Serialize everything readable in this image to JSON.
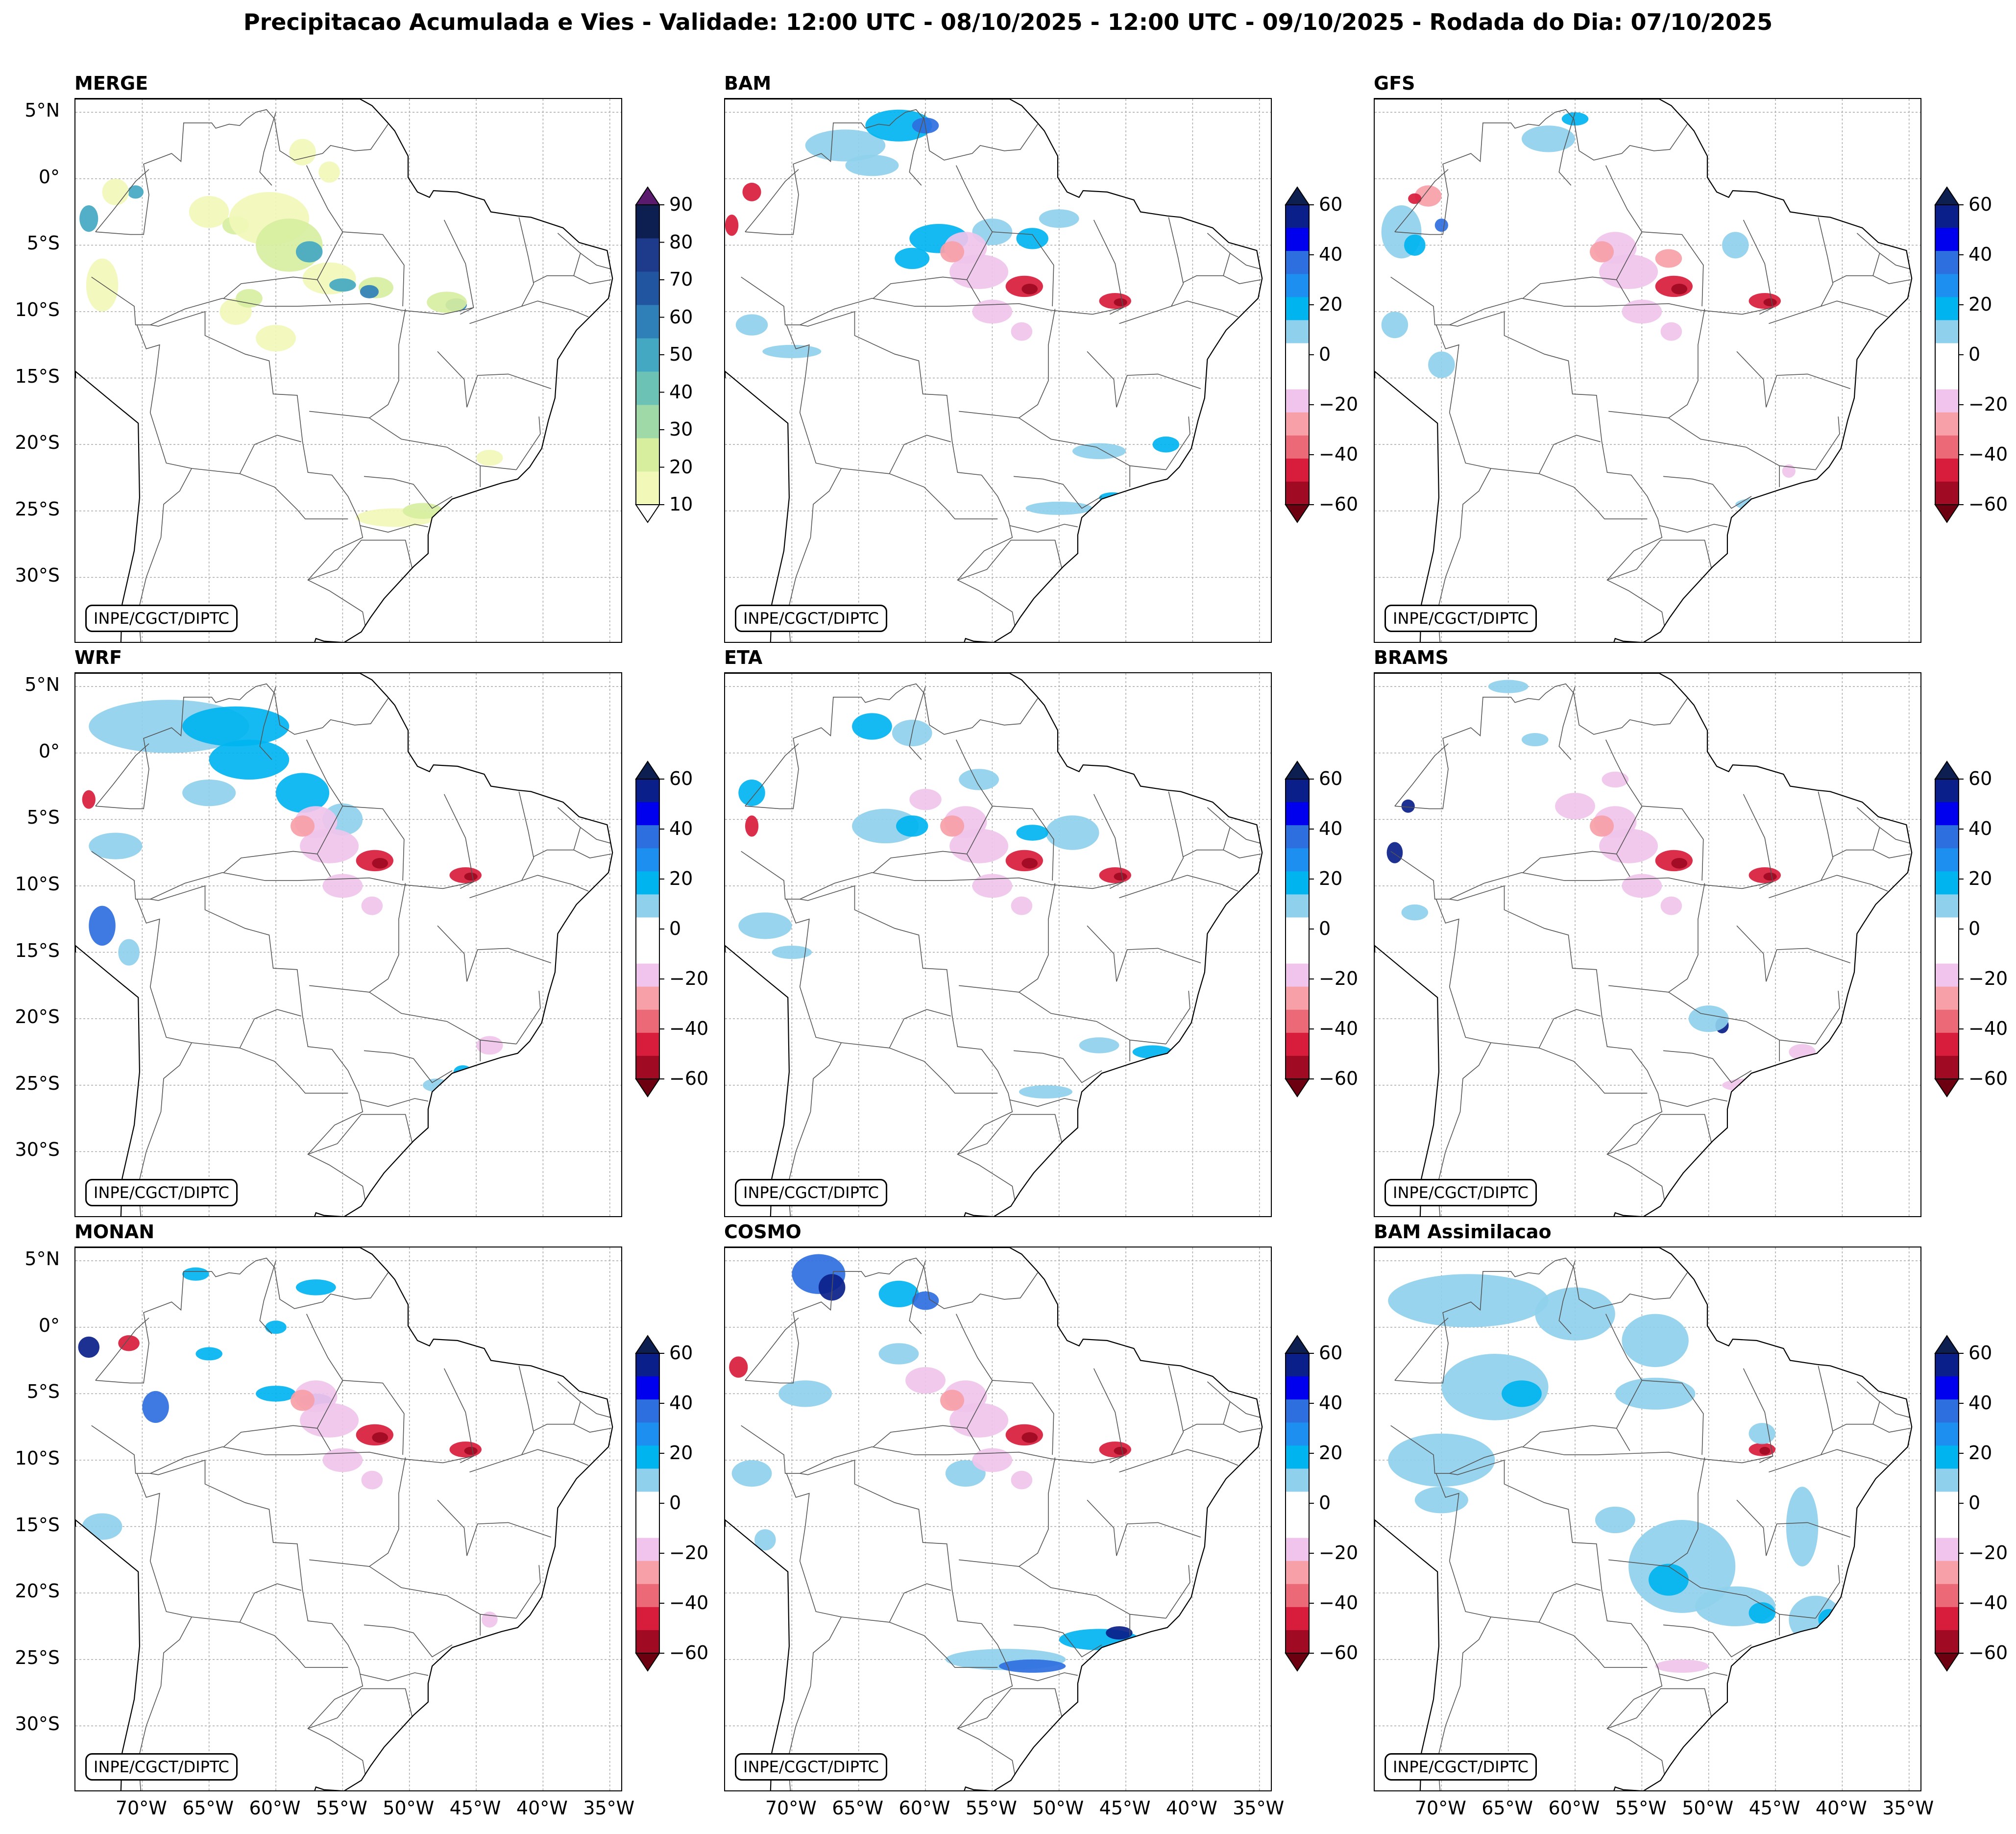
{
  "figure": {
    "title": "Precipitacao Acumulada e Vies - Validade: 12:00 UTC - 08/10/2025 - 12:00 UTC - 09/10/2025 - Rodada do Dia: 07/10/2025"
  },
  "credit": "INPE/CGCT/DIPTC",
  "axes": {
    "lat_labels": [
      "5°N",
      "0°",
      "5°S",
      "10°S",
      "15°S",
      "20°S",
      "25°S",
      "30°S"
    ],
    "lon_labels": [
      "70°W",
      "65°W",
      "60°W",
      "55°W",
      "50°W",
      "45°W",
      "40°W",
      "35°W"
    ]
  },
  "panels": [
    {
      "title": "MERGE"
    },
    {
      "title": "BAM"
    },
    {
      "title": "GFS"
    },
    {
      "title": "WRF"
    },
    {
      "title": "ETA"
    },
    {
      "title": "BRAMS"
    },
    {
      "title": "MONAN"
    },
    {
      "title": "COSMO"
    },
    {
      "title": "BAM Assimilacao"
    }
  ],
  "colorbars": {
    "precip": {
      "ticks": [
        "10",
        "20",
        "30",
        "40",
        "50",
        "60",
        "70",
        "80",
        "90"
      ],
      "colors": [
        "#f2f8b8",
        "#d7ee9f",
        "#9fd9a8",
        "#6cc3b5",
        "#44a8c2",
        "#2f7fb8",
        "#2255a0",
        "#1e3a8a",
        "#0d1f50"
      ],
      "extend_top": "#5a1a6e"
    },
    "bias": {
      "ticks": [
        "60",
        "40",
        "20",
        "0",
        "−20",
        "−40",
        "−60"
      ],
      "colors": [
        "#0a1f8a",
        "#0000ee",
        "#2e6fe0",
        "#1c8ff0",
        "#00b4f0",
        "#8fd0ec",
        "#ffffff",
        "#ffffff",
        "#f0c4ec",
        "#f7a0a8",
        "#ec6a78",
        "#d81c3c",
        "#a00a22"
      ],
      "extend_top": "#0d1f50",
      "extend_bottom": "#6d0010"
    }
  }
}
